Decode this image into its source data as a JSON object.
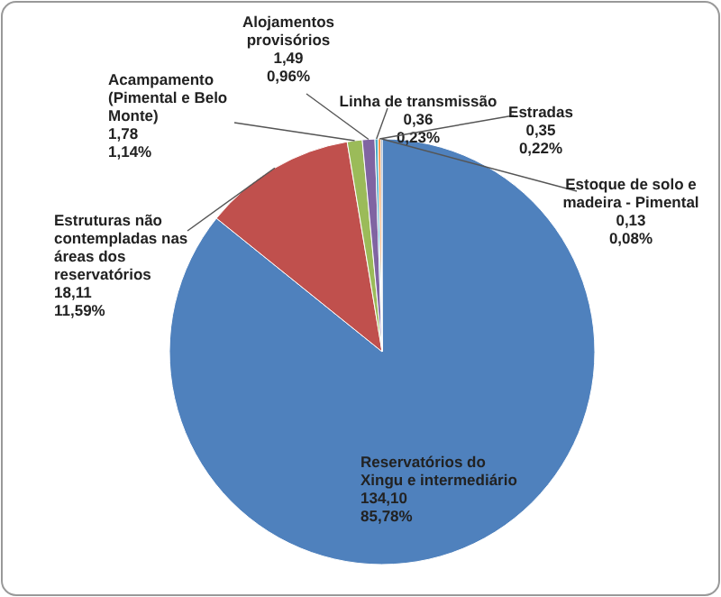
{
  "chart_data": {
    "type": "pie",
    "categories": [
      "Reservatórios do\nXingu e intermediário",
      "Estruturas não\ncontempladas nas\náreas dos\nreservatórios",
      "Acampamento\n(Pimental e Belo\nMonte)",
      "Alojamentos\nprovisórios",
      "Linha de transmissão",
      "Estradas",
      "Estoque de solo e\nmadeira - Pimental"
    ],
    "values": [
      134.1,
      18.11,
      1.78,
      1.49,
      0.36,
      0.35,
      0.13
    ],
    "value_labels": [
      "134,10\n85,78%",
      "18,11\n11,59%",
      "1,78\n1,14%",
      "1,49\n0,96%",
      "0,36\n0,23%",
      "0,35\n0,22%",
      "0,13\n0,08%"
    ],
    "colors": [
      "#4f81bd",
      "#c0504d",
      "#9bbb59",
      "#8064a2",
      "#4bacc6",
      "#f79646",
      "#2c4d75"
    ]
  }
}
